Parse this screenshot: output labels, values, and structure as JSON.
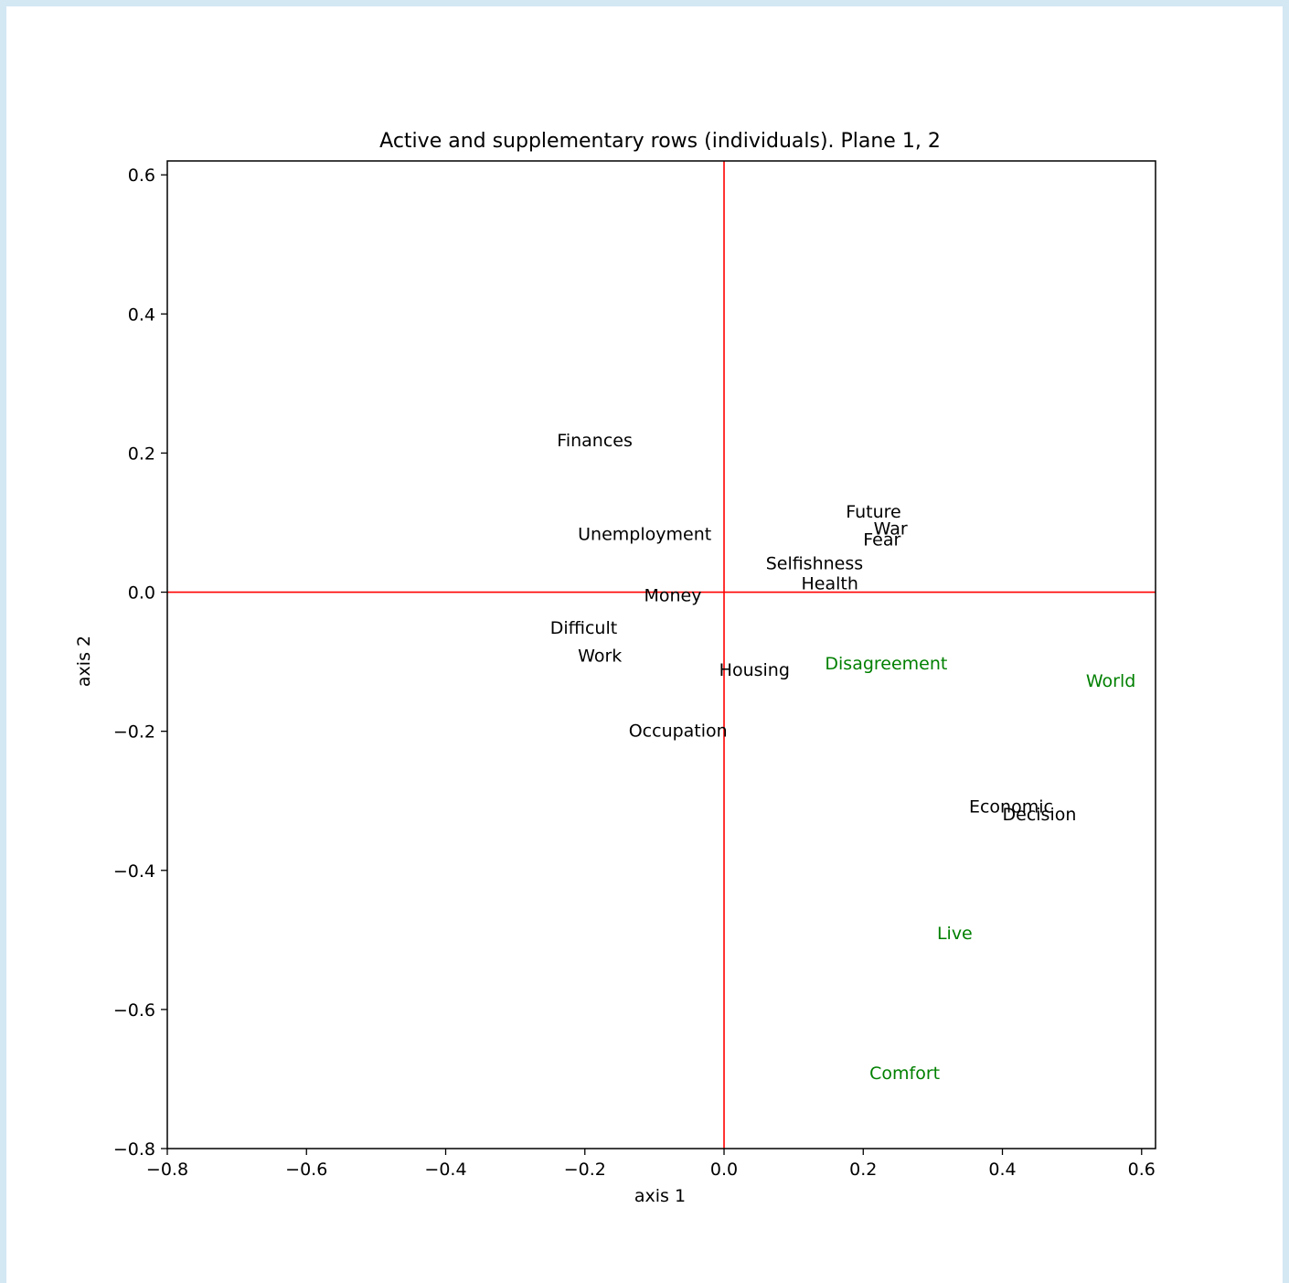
{
  "chart_data": {
    "type": "scatter",
    "title": "Active and supplementary rows (individuals). Plane 1, 2",
    "xlabel": "axis 1",
    "ylabel": "axis 2",
    "xlim": [
      -0.8,
      0.62
    ],
    "ylim": [
      -0.8,
      0.62
    ],
    "xticks": [
      -0.8,
      -0.6,
      -0.4,
      -0.2,
      0.0,
      0.2,
      0.4,
      0.6
    ],
    "yticks": [
      -0.8,
      -0.6,
      -0.4,
      -0.2,
      0.0,
      0.2,
      0.4,
      0.6
    ],
    "grid": false,
    "reference_lines": {
      "x": 0.0,
      "y": 0.0,
      "color": "#ff0000"
    },
    "series": [
      {
        "color": "#000000",
        "points": [
          {
            "label": "Finances",
            "x": -0.24,
            "y": 0.21
          },
          {
            "label": "Unemployment",
            "x": -0.21,
            "y": 0.075
          },
          {
            "label": "Money",
            "x": -0.115,
            "y": -0.013
          },
          {
            "label": "Difficult",
            "x": -0.25,
            "y": -0.06
          },
          {
            "label": "Work",
            "x": -0.21,
            "y": -0.1
          },
          {
            "label": "Housing",
            "x": -0.007,
            "y": -0.12
          },
          {
            "label": "Occupation",
            "x": -0.137,
            "y": -0.208
          },
          {
            "label": "Future",
            "x": 0.175,
            "y": 0.107
          },
          {
            "label": "War",
            "x": 0.215,
            "y": 0.083
          },
          {
            "label": "Fear",
            "x": 0.2,
            "y": 0.067
          },
          {
            "label": "Selfishness",
            "x": 0.06,
            "y": 0.033
          },
          {
            "label": "Health",
            "x": 0.111,
            "y": 0.004
          },
          {
            "label": "Economic",
            "x": 0.352,
            "y": -0.317
          },
          {
            "label": "Decision",
            "x": 0.4,
            "y": -0.328
          }
        ]
      },
      {
        "color": "#008000",
        "points": [
          {
            "label": "Disagreement",
            "x": 0.145,
            "y": -0.111
          },
          {
            "label": "World",
            "x": 0.52,
            "y": -0.136
          },
          {
            "label": "Live",
            "x": 0.306,
            "y": -0.499
          },
          {
            "label": "Comfort",
            "x": 0.209,
            "y": -0.7
          }
        ]
      }
    ]
  }
}
